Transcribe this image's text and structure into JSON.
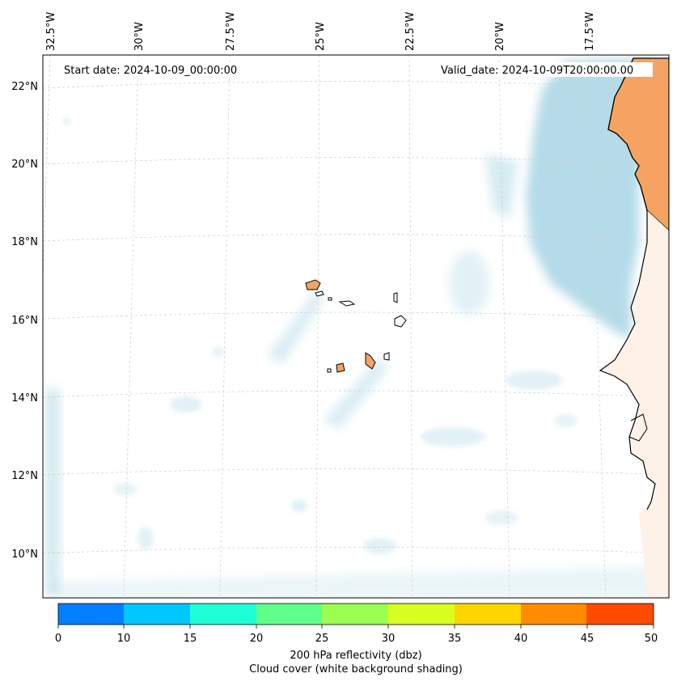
{
  "map": {
    "start_date_label": "Start date: 2024-10-09_00:00:00",
    "valid_date_label": "Valid_date: 2024-10-09T20:00:00.00",
    "longitude_labels": [
      "32.5°W",
      "30°W",
      "27.5°W",
      "25°W",
      "22.5°W",
      "20°W",
      "17.5°W"
    ],
    "latitude_labels": [
      "22°N",
      "20°N",
      "18°N",
      "16°N",
      "14°N",
      "12°N",
      "10°N"
    ],
    "colors": {
      "land": "#f4a460",
      "cloud": "#add8e6",
      "coastline": "#000000",
      "gridline": "#cccccc"
    }
  },
  "colorbar": {
    "ticks": [
      "0",
      "10",
      "15",
      "20",
      "25",
      "30",
      "35",
      "40",
      "45",
      "50"
    ],
    "colors": [
      "#0080ff",
      "#00c8ff",
      "#1effd8",
      "#60ff8a",
      "#9aff50",
      "#d8ff20",
      "#ffd500",
      "#ff8c00",
      "#ff4b00"
    ],
    "label_line1": "200 hPa reflectivity (dbz)",
    "label_line2": "Cloud cover (white background shading)"
  }
}
